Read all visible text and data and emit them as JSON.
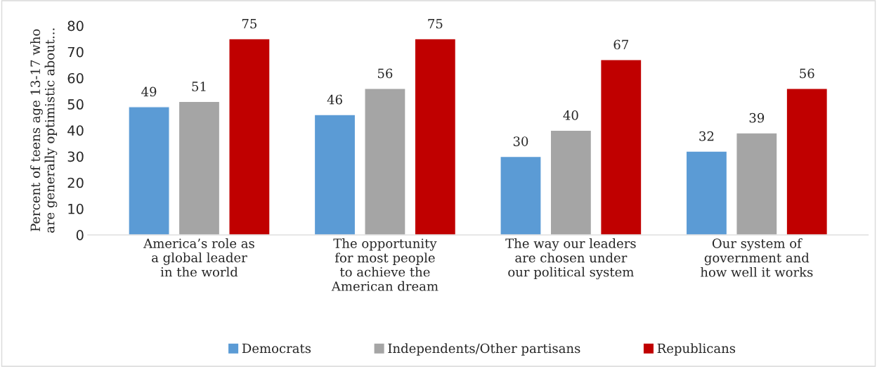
{
  "chart_data": {
    "type": "bar",
    "ylabel": "Percent of teens age 13-17 who\nare generally optimistic about...",
    "categories": [
      "America’s role as\na global leader\nin the world",
      "The opportunity\nfor most people\nto achieve the\nAmerican dream",
      "The way our leaders\nare chosen under\nour political system",
      "Our system of\ngovernment and\nhow well it works"
    ],
    "series": [
      {
        "name": "Democrats",
        "color": "#5b9bd5",
        "values": [
          49,
          46,
          30,
          32
        ]
      },
      {
        "name": "Independents/Other partisans",
        "color": "#a5a5a5",
        "values": [
          51,
          56,
          40,
          39
        ]
      },
      {
        "name": "Republicans",
        "color": "#c00000",
        "values": [
          75,
          75,
          67,
          56
        ]
      }
    ],
    "ylim": [
      0,
      80
    ],
    "yticks": [
      0,
      10,
      20,
      30,
      40,
      50,
      60,
      70,
      80
    ],
    "data_labels": true,
    "grid": false,
    "legend": "bottom"
  }
}
